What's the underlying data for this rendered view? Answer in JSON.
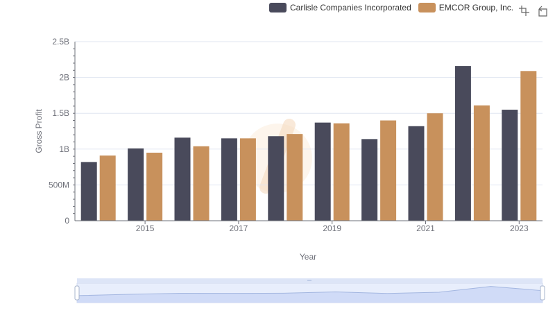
{
  "legend": {
    "series": [
      {
        "name": "Carlisle Companies Incorporated",
        "color": "#494a5b"
      },
      {
        "name": "EMCOR Group, Inc.",
        "color": "#c8915c"
      }
    ]
  },
  "toolbox": {
    "icons": [
      "data-zoom-icon",
      "zoom-reset-icon"
    ]
  },
  "chart_data": {
    "type": "bar",
    "categories": [
      "2014",
      "2015",
      "2016",
      "2017",
      "2018",
      "2019",
      "2020",
      "2021",
      "2022",
      "2023"
    ],
    "x_tick_labels": [
      "2015",
      "2017",
      "2019",
      "2021",
      "2023"
    ],
    "series": [
      {
        "name": "Carlisle Companies Incorporated",
        "color": "#494a5b",
        "values": [
          820000000,
          1010000000,
          1160000000,
          1150000000,
          1180000000,
          1370000000,
          1140000000,
          1320000000,
          2160000000,
          1550000000
        ]
      },
      {
        "name": "EMCOR Group, Inc.",
        "color": "#c8915c",
        "values": [
          910000000,
          950000000,
          1040000000,
          1150000000,
          1210000000,
          1360000000,
          1400000000,
          1500000000,
          1610000000,
          2090000000
        ]
      }
    ],
    "xlabel": "Year",
    "ylabel": "Gross Profit",
    "ylim": [
      0,
      2500000000
    ],
    "y_ticks": [
      {
        "value": 0,
        "label": "0"
      },
      {
        "value": 500000000,
        "label": "500M"
      },
      {
        "value": 1000000000,
        "label": "1B"
      },
      {
        "value": 1500000000,
        "label": "1.5B"
      },
      {
        "value": 2000000000,
        "label": "2B"
      },
      {
        "value": 2500000000,
        "label": "2.5B"
      }
    ],
    "grid": true,
    "legend_position": "top-right"
  }
}
